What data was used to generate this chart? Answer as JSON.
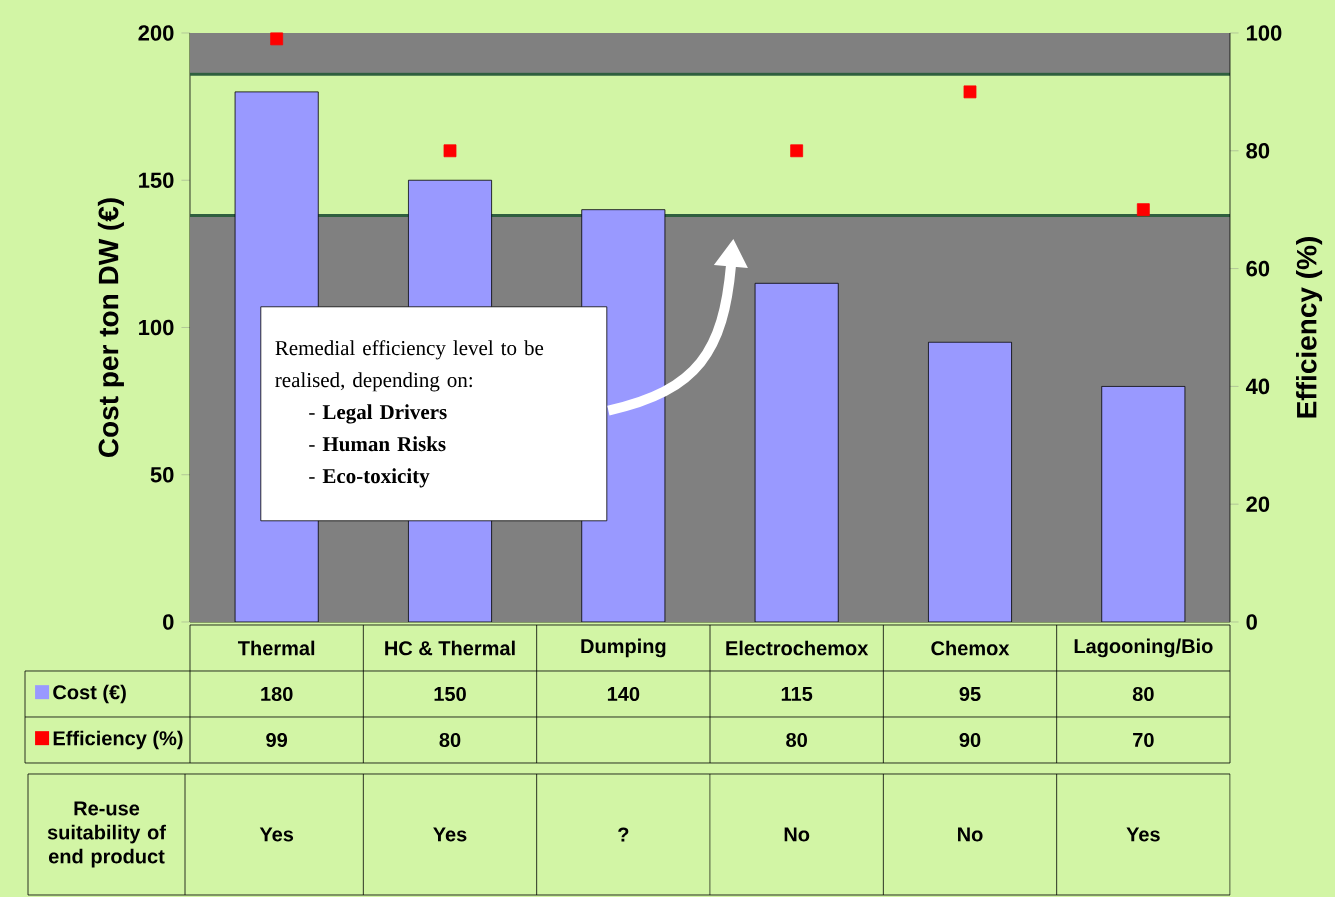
{
  "chart_data": {
    "type": "bar",
    "categories": [
      "Thermal",
      "HC & Thermal",
      "Dumping",
      "Electrochemox",
      "Chemox",
      "Lagooning/Bio"
    ],
    "series": [
      {
        "name": "Cost (€)",
        "color": "#9999ff",
        "values": [
          180,
          150,
          140,
          115,
          95,
          80
        ]
      },
      {
        "name": "Efficiency (%)",
        "type": "scatter",
        "axis": "y2",
        "color": "#ff0000",
        "values": [
          99,
          80,
          null,
          80,
          90,
          70
        ]
      }
    ],
    "ylabel": "Cost per ton DW (€)",
    "y2label": "Efficiency (%)",
    "ylim": [
      0,
      200
    ],
    "yticks": [
      0,
      50,
      100,
      150,
      200
    ],
    "y2lim": [
      0,
      100
    ],
    "y2ticks": [
      0,
      20,
      40,
      60,
      80,
      100
    ],
    "bands": [
      {
        "axis": "y",
        "from": 0,
        "to": 138,
        "color": "#808080"
      },
      {
        "axis": "y",
        "from": 186,
        "to": 200,
        "color": "#808080"
      }
    ],
    "ref_lines": [
      {
        "axis": "y",
        "value": 138,
        "color": "#2f5f3f"
      },
      {
        "axis": "y",
        "value": 186,
        "color": "#2f5f3f"
      }
    ],
    "marker": "square",
    "legend": "bottom",
    "data_labels": true,
    "annotations": [
      "Remedial efficiency level to be realised, depending on:",
      "- **Legal Drivers**",
      "- **Human Risks**",
      "- **Eco-toxicity**",
      "Re-use suitability of end product",
      "Yes",
      "Yes",
      "?",
      "No",
      "No",
      "Yes"
    ]
  }
}
